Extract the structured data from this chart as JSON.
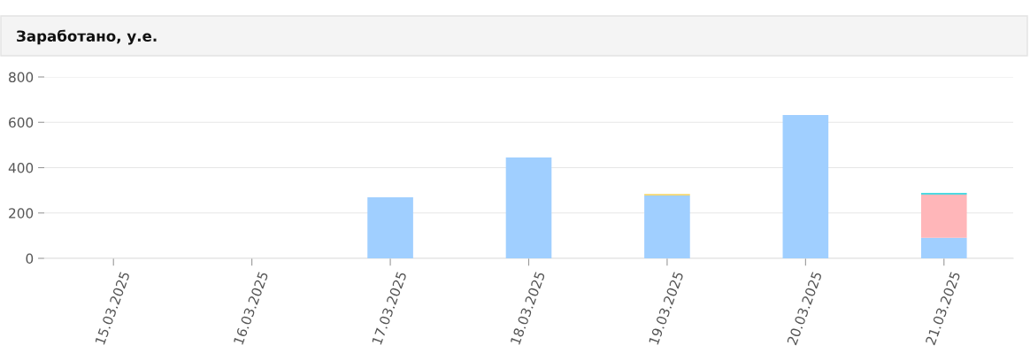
{
  "chart_data": {
    "type": "bar",
    "title": "Заработано, у.е.",
    "stacked": true,
    "categories": [
      "15.03.2025",
      "16.03.2025",
      "17.03.2025",
      "18.03.2025",
      "19.03.2025",
      "20.03.2025",
      "21.03.2025"
    ],
    "series": [
      {
        "color": "#a0cfff",
        "values": [
          0,
          0,
          269,
          445,
          277,
          632,
          91
        ]
      },
      {
        "color": "#ffb6b9",
        "values": [
          0,
          0,
          0,
          0,
          0,
          0,
          190
        ]
      },
      {
        "color": "#f5d76e",
        "values": [
          0,
          0,
          0,
          0,
          7,
          0,
          0
        ]
      },
      {
        "color": "#4dd9e0",
        "values": [
          0,
          0,
          0,
          0,
          0,
          0,
          8
        ]
      }
    ],
    "ylim": [
      0,
      800
    ],
    "yticks": [
      0,
      200,
      400,
      600,
      800
    ],
    "grid": "y",
    "legend": false
  }
}
